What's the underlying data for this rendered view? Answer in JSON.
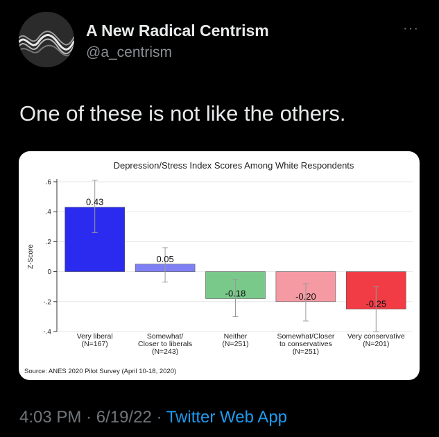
{
  "author": {
    "display_name": "A New Radical Centrism",
    "handle": "@a_centrism",
    "avatar_icon": "wave-lines-avatar",
    "more_icon": "more-dots-icon"
  },
  "tweet": {
    "text": "One of these is not like the others."
  },
  "meta": {
    "time": "4:03 PM",
    "separator1": " · ",
    "date": "6/19/22",
    "separator2": " · ",
    "app": "Twitter Web App"
  },
  "colors": {
    "background": "#000000",
    "link": "#1d9bf0",
    "muted": "#71767b"
  },
  "chart_data": {
    "type": "bar",
    "title": "Depression/Stress Index Scores Among White Respondents",
    "ylabel": "Z-Score",
    "xlabel": "",
    "ylim": [
      -0.4,
      0.6
    ],
    "yticks": [
      -0.4,
      -0.2,
      0,
      0.2,
      0.4,
      0.6
    ],
    "ytick_labels": [
      "-.4",
      "-.2",
      "0",
      ".2",
      ".4",
      ".6"
    ],
    "source": "Source: ANES 2020 Pilot Survey (April 10-18, 2020)",
    "categories": [
      {
        "lines": [
          "Very liberal",
          "(N=167)"
        ]
      },
      {
        "lines": [
          "Somewhat/",
          "Closer to liberals",
          "(N=243)"
        ]
      },
      {
        "lines": [
          "Neither",
          "(N=251)"
        ]
      },
      {
        "lines": [
          "Somewhat/Closer",
          "to conservatives",
          "(N=251)"
        ]
      },
      {
        "lines": [
          "Very conservative",
          "(N=201)"
        ]
      }
    ],
    "values": [
      0.43,
      0.05,
      -0.18,
      -0.2,
      -0.25
    ],
    "value_labels": [
      "0.43",
      "0.05",
      "-0.18",
      "-0.20",
      "-0.25"
    ],
    "ci_low": [
      0.26,
      -0.07,
      -0.3,
      -0.33,
      -0.4
    ],
    "ci_high": [
      0.61,
      0.16,
      -0.05,
      -0.08,
      -0.1
    ],
    "colors": [
      "#2b2bf0",
      "#8080f5",
      "#79c98a",
      "#f59aa2",
      "#f23c45"
    ],
    "grid": true,
    "legend": "none"
  }
}
